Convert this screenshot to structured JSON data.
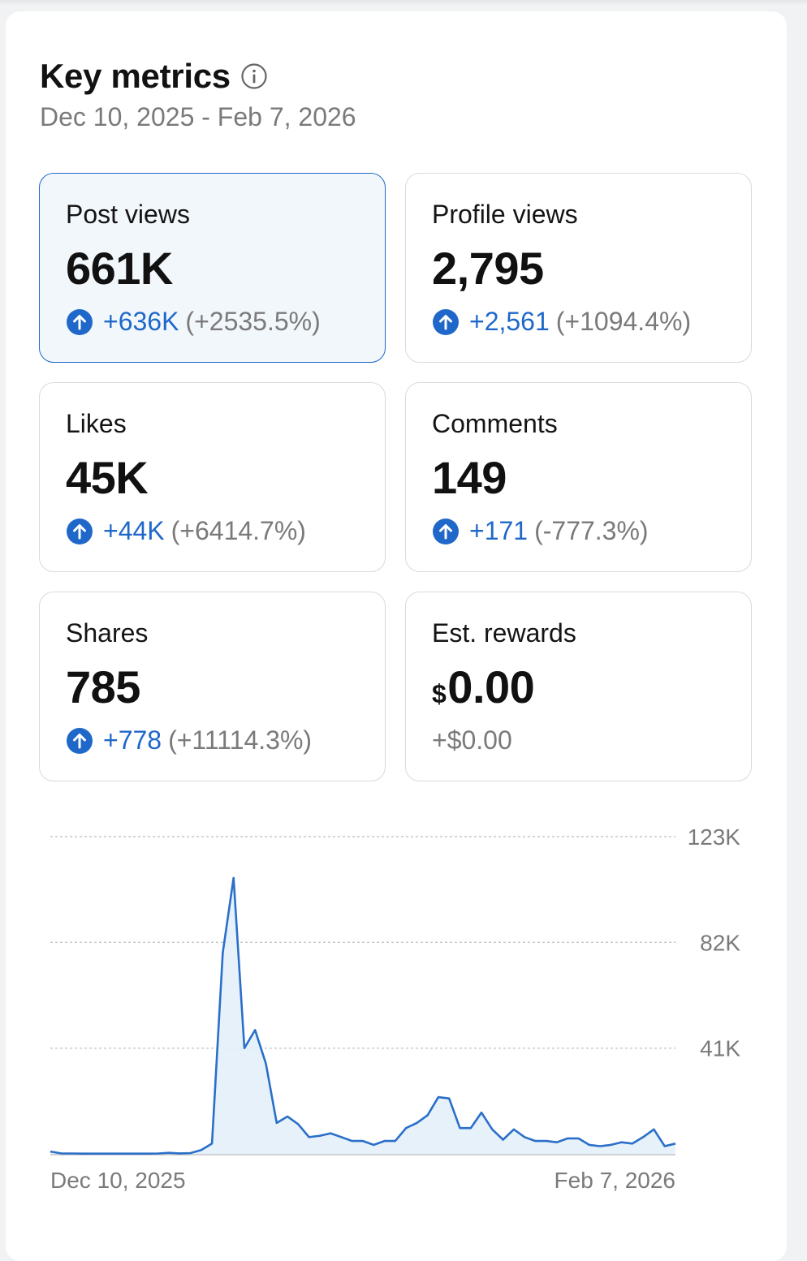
{
  "header": {
    "title": "Key metrics",
    "date_range": "Dec 10, 2025 - Feb 7, 2026"
  },
  "cards": [
    {
      "label": "Post views",
      "value": "661K",
      "delta": "+636K",
      "pct": "(+2535.5%)",
      "selected": true
    },
    {
      "label": "Profile views",
      "value": "2,795",
      "delta": "+2,561",
      "pct": "(+1094.4%)"
    },
    {
      "label": "Likes",
      "value": "45K",
      "delta": "+44K",
      "pct": "(+6414.7%)"
    },
    {
      "label": "Comments",
      "value": "149",
      "delta": "+171",
      "pct": "(-777.3%)"
    },
    {
      "label": "Shares",
      "value": "785",
      "delta": "+778",
      "pct": "(+11114.3%)"
    },
    {
      "label": "Est. rewards",
      "currency": "$",
      "value": "0.00",
      "change_text": "+$0.00"
    }
  ],
  "colors": {
    "accent": "#1f68c9",
    "selected_bg": "#f2f7fc",
    "muted_text": "#7a7a7a",
    "line": "#2a6fc8",
    "area": "#e3eef9"
  },
  "icons": {
    "title_info": "info-icon",
    "change": "arrow-up-circle-icon"
  },
  "chart_data": {
    "type": "area",
    "x_start_label": "Dec 10, 2025",
    "x_end_label": "Feb 7, 2026",
    "y_ticks": [
      {
        "value": 41000,
        "label": "41K"
      },
      {
        "value": 82000,
        "label": "82K"
      },
      {
        "value": 123000,
        "label": "123K"
      }
    ],
    "ylim": [
      0,
      123000
    ],
    "grid": true,
    "series": [
      {
        "values": [
          900,
          200,
          150,
          100,
          100,
          100,
          100,
          100,
          100,
          100,
          150,
          400,
          200,
          300,
          1500,
          4000,
          78000,
          107000,
          41000,
          48000,
          35000,
          12000,
          14500,
          11500,
          6500,
          7000,
          8000,
          6500,
          5000,
          5000,
          3500,
          5000,
          5000,
          10000,
          12000,
          15000,
          22000,
          21500,
          10000,
          10000,
          16000,
          9500,
          5500,
          9500,
          6500,
          5000,
          5000,
          4500,
          6000,
          6000,
          3500,
          3000,
          3500,
          4500,
          4000,
          6500,
          9500,
          3000,
          4000
        ]
      }
    ]
  }
}
